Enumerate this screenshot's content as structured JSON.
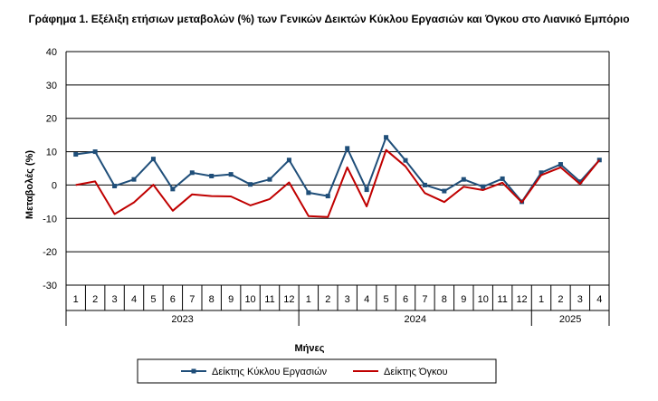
{
  "chart_data": {
    "type": "line",
    "title": "Γράφημα 1. Εξέλιξη ετήσιων μεταβολών (%) των Γενικών Δεικτών Κύκλου Εργασιών και Όγκου στο Λιανικό Εμπόριο",
    "xlabel": "Μήνες",
    "ylabel": "Μεταβολές (%)",
    "ylim": [
      -30,
      40
    ],
    "yticks": [
      -30,
      -20,
      -10,
      0,
      10,
      20,
      30,
      40
    ],
    "grid": true,
    "legend": "bottom",
    "months": [
      "1",
      "2",
      "3",
      "4",
      "5",
      "6",
      "7",
      "8",
      "9",
      "10",
      "11",
      "12",
      "1",
      "2",
      "3",
      "4",
      "5",
      "6",
      "7",
      "8",
      "9",
      "10",
      "11",
      "12",
      "1",
      "2",
      "3",
      "4"
    ],
    "years": [
      {
        "label": "2023",
        "count": 12
      },
      {
        "label": "2024",
        "count": 12
      },
      {
        "label": "2025",
        "count": 4
      }
    ],
    "series": [
      {
        "name": "Δείκτης Κύκλου Εργασιών",
        "color": "#1f4e79",
        "marker": "square",
        "values": [
          9.2,
          10.0,
          -0.3,
          1.7,
          7.8,
          -1.2,
          3.7,
          2.7,
          3.2,
          0.2,
          1.7,
          7.5,
          -2.3,
          -3.3,
          11.0,
          -1.4,
          14.3,
          7.4,
          0.0,
          -1.8,
          1.7,
          -0.5,
          1.9,
          -5.0,
          3.7,
          6.2,
          1.0,
          7.5
        ]
      },
      {
        "name": "Δείκτης Όγκου",
        "color": "#c00000",
        "marker": "none",
        "values": [
          0.0,
          1.1,
          -8.7,
          -5.2,
          0.1,
          -7.7,
          -2.8,
          -3.3,
          -3.4,
          -6.1,
          -4.2,
          0.8,
          -9.3,
          -9.6,
          5.3,
          -6.4,
          10.5,
          5.6,
          -2.4,
          -5.1,
          -0.5,
          -1.5,
          0.7,
          -5.2,
          3.0,
          5.3,
          0.3,
          7.5
        ]
      }
    ]
  }
}
